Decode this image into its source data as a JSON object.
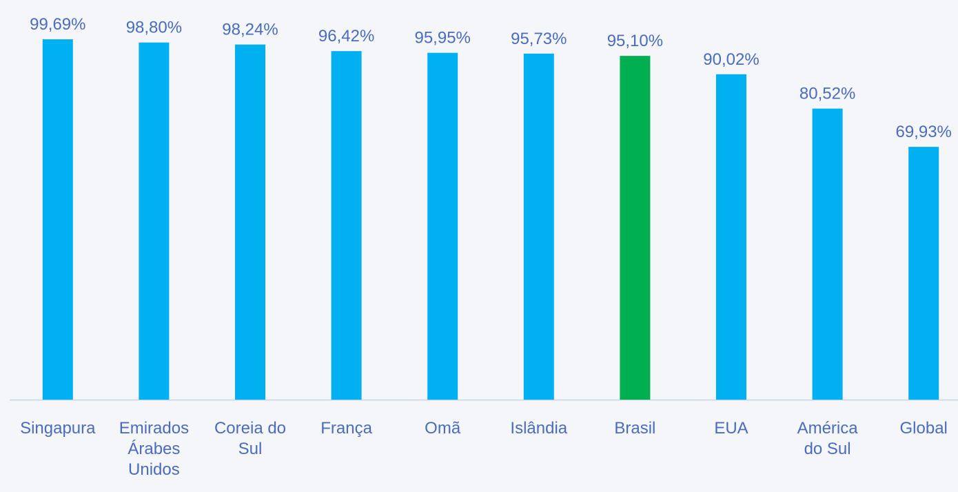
{
  "chart_data": {
    "type": "bar",
    "categories": [
      "Singapura",
      "Emirados Árabes Unidos",
      "Coreia do Sul",
      "França",
      "Omã",
      "Islândia",
      "Brasil",
      "EUA",
      "América do Sul",
      "Global"
    ],
    "values": [
      99.69,
      98.8,
      98.24,
      96.42,
      95.95,
      95.73,
      95.1,
      90.02,
      80.52,
      69.93
    ],
    "value_labels": [
      "99,69%",
      "98,80%",
      "98,24%",
      "96,42%",
      "95,95%",
      "95,73%",
      "95,10%",
      "90,02%",
      "80,52%",
      "69,93%"
    ],
    "colors": [
      "#00b0f0",
      "#00b0f0",
      "#00b0f0",
      "#00b0f0",
      "#00b0f0",
      "#00b0f0",
      "#00b050",
      "#00b0f0",
      "#00b0f0",
      "#00b0f0"
    ]
  }
}
